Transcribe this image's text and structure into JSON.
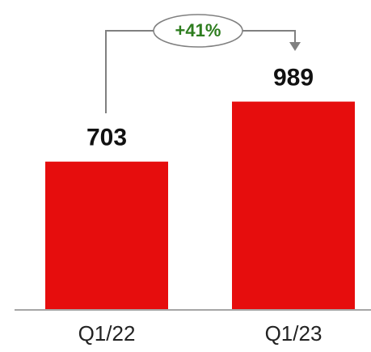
{
  "chart_data": {
    "type": "bar",
    "categories": [
      "Q1/22",
      "Q1/23"
    ],
    "values": [
      703,
      989
    ],
    "color": "#e60d0d",
    "ylim": [
      0,
      1400
    ],
    "annotation": "+41%"
  }
}
